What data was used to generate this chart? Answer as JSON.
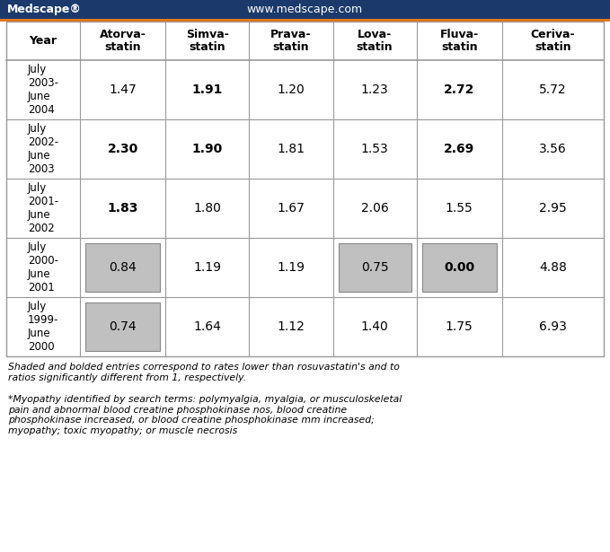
{
  "header_bg": "#1b3a6b",
  "header_bottom_line": "#e07820",
  "table_bg": "#ffffff",
  "border_color": "#999999",
  "shade_color": "#c0c0c0",
  "shade_border": "#888888",
  "title_bar_text": [
    "Medscape®",
    "www.medscape.com"
  ],
  "col_headers": [
    "Year",
    "Atorva-\nstatin",
    "Simva-\nstatin",
    "Prava-\nstatin",
    "Lova-\nstatin",
    "Fluva-\nstatin",
    "Ceriva-\nstatin"
  ],
  "row_labels": [
    "July\n2003-\nJune\n2004",
    "July\n2002-\nJune\n2003",
    "July\n2001-\nJune\n2002",
    "July\n2000-\nJune\n2001",
    "July\n1999-\nJune\n2000"
  ],
  "data": [
    [
      "1.47",
      "1.91",
      "1.20",
      "1.23",
      "2.72",
      "5.72"
    ],
    [
      "2.30",
      "1.90",
      "1.81",
      "1.53",
      "2.69",
      "3.56"
    ],
    [
      "1.83",
      "1.80",
      "1.67",
      "2.06",
      "1.55",
      "2.95"
    ],
    [
      "0.84",
      "1.19",
      "1.19",
      "0.75",
      "0.00",
      "4.88"
    ],
    [
      "0.74",
      "1.64",
      "1.12",
      "1.40",
      "1.75",
      "6.93"
    ]
  ],
  "bold": [
    [
      false,
      true,
      false,
      false,
      true,
      false
    ],
    [
      true,
      true,
      false,
      false,
      true,
      false
    ],
    [
      true,
      false,
      false,
      false,
      false,
      false
    ],
    [
      false,
      false,
      false,
      false,
      true,
      false
    ],
    [
      false,
      false,
      false,
      false,
      false,
      false
    ]
  ],
  "shaded": [
    [
      false,
      false,
      false,
      false,
      false,
      false
    ],
    [
      false,
      false,
      false,
      false,
      false,
      false
    ],
    [
      false,
      false,
      false,
      false,
      false,
      false
    ],
    [
      true,
      false,
      false,
      true,
      true,
      false
    ],
    [
      true,
      false,
      false,
      false,
      false,
      false
    ]
  ],
  "footnote1": "Shaded and bolded entries correspond to rates lower than rosuvastatin's and to\nratios significantly different from 1, respectively.",
  "footnote2": "*Myopathy identified by search terms: polymyalgia, myalgia, or musculoskeletal\npain and abnormal blood creatine phosphokinase nos, blood creatine\nphosphokinase increased, or blood creatine phosphokinase mm increased;\nmyopathy; toxic myopathy; or muscle necrosis"
}
